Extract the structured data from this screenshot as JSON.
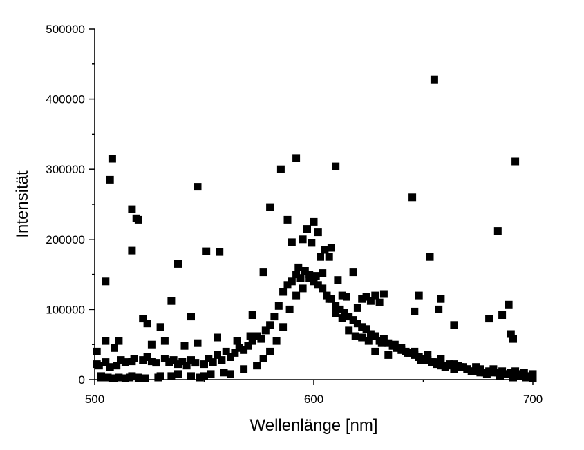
{
  "chart_data": {
    "type": "scatter",
    "title": "",
    "xlabel": "Wellenlänge [nm]",
    "ylabel": "Intensität",
    "xlim": [
      500,
      700
    ],
    "ylim": [
      0,
      500000
    ],
    "xticks": [
      500,
      600,
      700
    ],
    "xtick_labels": [
      "500",
      "600",
      "700"
    ],
    "yticks": [
      0,
      100000,
      200000,
      300000,
      400000,
      500000
    ],
    "ytick_labels": [
      "0",
      "100000",
      "200000",
      "300000",
      "400000",
      "500000"
    ],
    "grid": false,
    "legend": "none",
    "marker": "square",
    "marker_color": "#000000",
    "series": [
      {
        "x": [
          501,
          502,
          503,
          505,
          506,
          507,
          509,
          510,
          512,
          514,
          516,
          517,
          518,
          520,
          522,
          524,
          526,
          528,
          530,
          532,
          534,
          536,
          538,
          540,
          542,
          544,
          546,
          548,
          550,
          552,
          554,
          556,
          558,
          560,
          562,
          564,
          566,
          568,
          570,
          572,
          574,
          576,
          578,
          580,
          582,
          584,
          586,
          588,
          590,
          592,
          594,
          596,
          598,
          600,
          602,
          604,
          606,
          608,
          610,
          612,
          614,
          616,
          618,
          620,
          622,
          624,
          626,
          628,
          630,
          632,
          634,
          636,
          638,
          640,
          642,
          644,
          646,
          648,
          650,
          652,
          654,
          656,
          658,
          660,
          662,
          664,
          666,
          668,
          670,
          672,
          674,
          676,
          678,
          680,
          682,
          684,
          686,
          688,
          690,
          692,
          694,
          696,
          698,
          700,
          501,
          503,
          505,
          508,
          511,
          514,
          517,
          520,
          523,
          526,
          529,
          532,
          535,
          538,
          541,
          544,
          547,
          550,
          553,
          556,
          559,
          562,
          565,
          568,
          571,
          574,
          577,
          580,
          583,
          586,
          589,
          592,
          595,
          598,
          601,
          604,
          607,
          610,
          613,
          616,
          619,
          622,
          625,
          628,
          631,
          634,
          637,
          640,
          643,
          646,
          649,
          652,
          655,
          658,
          661,
          664,
          667,
          670,
          673,
          676,
          679,
          682,
          685,
          688,
          691,
          694,
          697,
          700,
          505,
          507,
          508,
          509,
          511,
          517,
          517,
          519,
          520,
          522,
          524,
          530,
          535,
          538,
          544,
          547,
          551,
          557,
          572,
          577,
          580,
          585,
          588,
          590,
          592,
          593,
          595,
          597,
          599,
          600,
          602,
          603,
          605,
          607,
          608,
          610,
          611,
          613,
          615,
          618,
          620,
          622,
          624,
          626,
          628,
          630,
          632,
          645,
          646,
          648,
          653,
          655,
          657,
          658,
          664,
          680,
          684,
          686,
          689,
          690,
          691,
          692
        ],
        "y": [
          22000,
          20000,
          5000,
          25000,
          3000,
          18000,
          2000,
          20000,
          28000,
          25000,
          3000,
          26000,
          30000,
          2000,
          28000,
          32000,
          26000,
          24000,
          5000,
          30000,
          25000,
          28000,
          22000,
          26000,
          20000,
          28000,
          24000,
          3000,
          22000,
          30000,
          25000,
          35000,
          28000,
          40000,
          32000,
          38000,
          45000,
          42000,
          48000,
          55000,
          62000,
          58000,
          70000,
          78000,
          90000,
          105000,
          125000,
          135000,
          140000,
          150000,
          145000,
          155000,
          150000,
          140000,
          135000,
          130000,
          120000,
          115000,
          105000,
          100000,
          95000,
          90000,
          85000,
          80000,
          75000,
          72000,
          65000,
          62000,
          55000,
          58000,
          52000,
          48000,
          45000,
          42000,
          40000,
          38000,
          35000,
          32000,
          30000,
          28000,
          25000,
          22000,
          20000,
          18000,
          22000,
          15000,
          20000,
          18000,
          15000,
          12000,
          18000,
          15000,
          10000,
          12000,
          15000,
          10000,
          12000,
          8000,
          10000,
          12000,
          8000,
          10000,
          5000,
          8000,
          40000,
          3000,
          55000,
          2000,
          3000,
          2000,
          5000,
          3000,
          2000,
          50000,
          3000,
          55000,
          5000,
          8000,
          48000,
          5000,
          52000,
          5000,
          8000,
          60000,
          10000,
          8000,
          55000,
          15000,
          62000,
          20000,
          30000,
          40000,
          55000,
          75000,
          100000,
          120000,
          130000,
          145000,
          148000,
          152000,
          115000,
          95000,
          88000,
          70000,
          62000,
          60000,
          55000,
          40000,
          52000,
          35000,
          50000,
          45000,
          38000,
          40000,
          28000,
          35000,
          25000,
          30000,
          20000,
          22000,
          18000,
          15000,
          12000,
          10000,
          8000,
          10000,
          5000,
          8000,
          3000,
          5000,
          3000,
          2000,
          140000,
          285000,
          315000,
          45000,
          55000,
          243000,
          184000,
          230000,
          228000,
          87000,
          80000,
          75000,
          112000,
          165000,
          90000,
          275000,
          183000,
          182000,
          92000,
          153000,
          246000,
          300000,
          228000,
          196000,
          316000,
          160000,
          200000,
          215000,
          195000,
          225000,
          210000,
          175000,
          185000,
          175000,
          188000,
          304000,
          142000,
          120000,
          118000,
          153000,
          102000,
          115000,
          118000,
          112000,
          120000,
          110000,
          122000,
          260000,
          97000,
          120000,
          175000,
          428000,
          100000,
          115000,
          78000,
          87000,
          212000,
          92000,
          107000,
          65000,
          58000,
          311000
        ]
      }
    ]
  }
}
